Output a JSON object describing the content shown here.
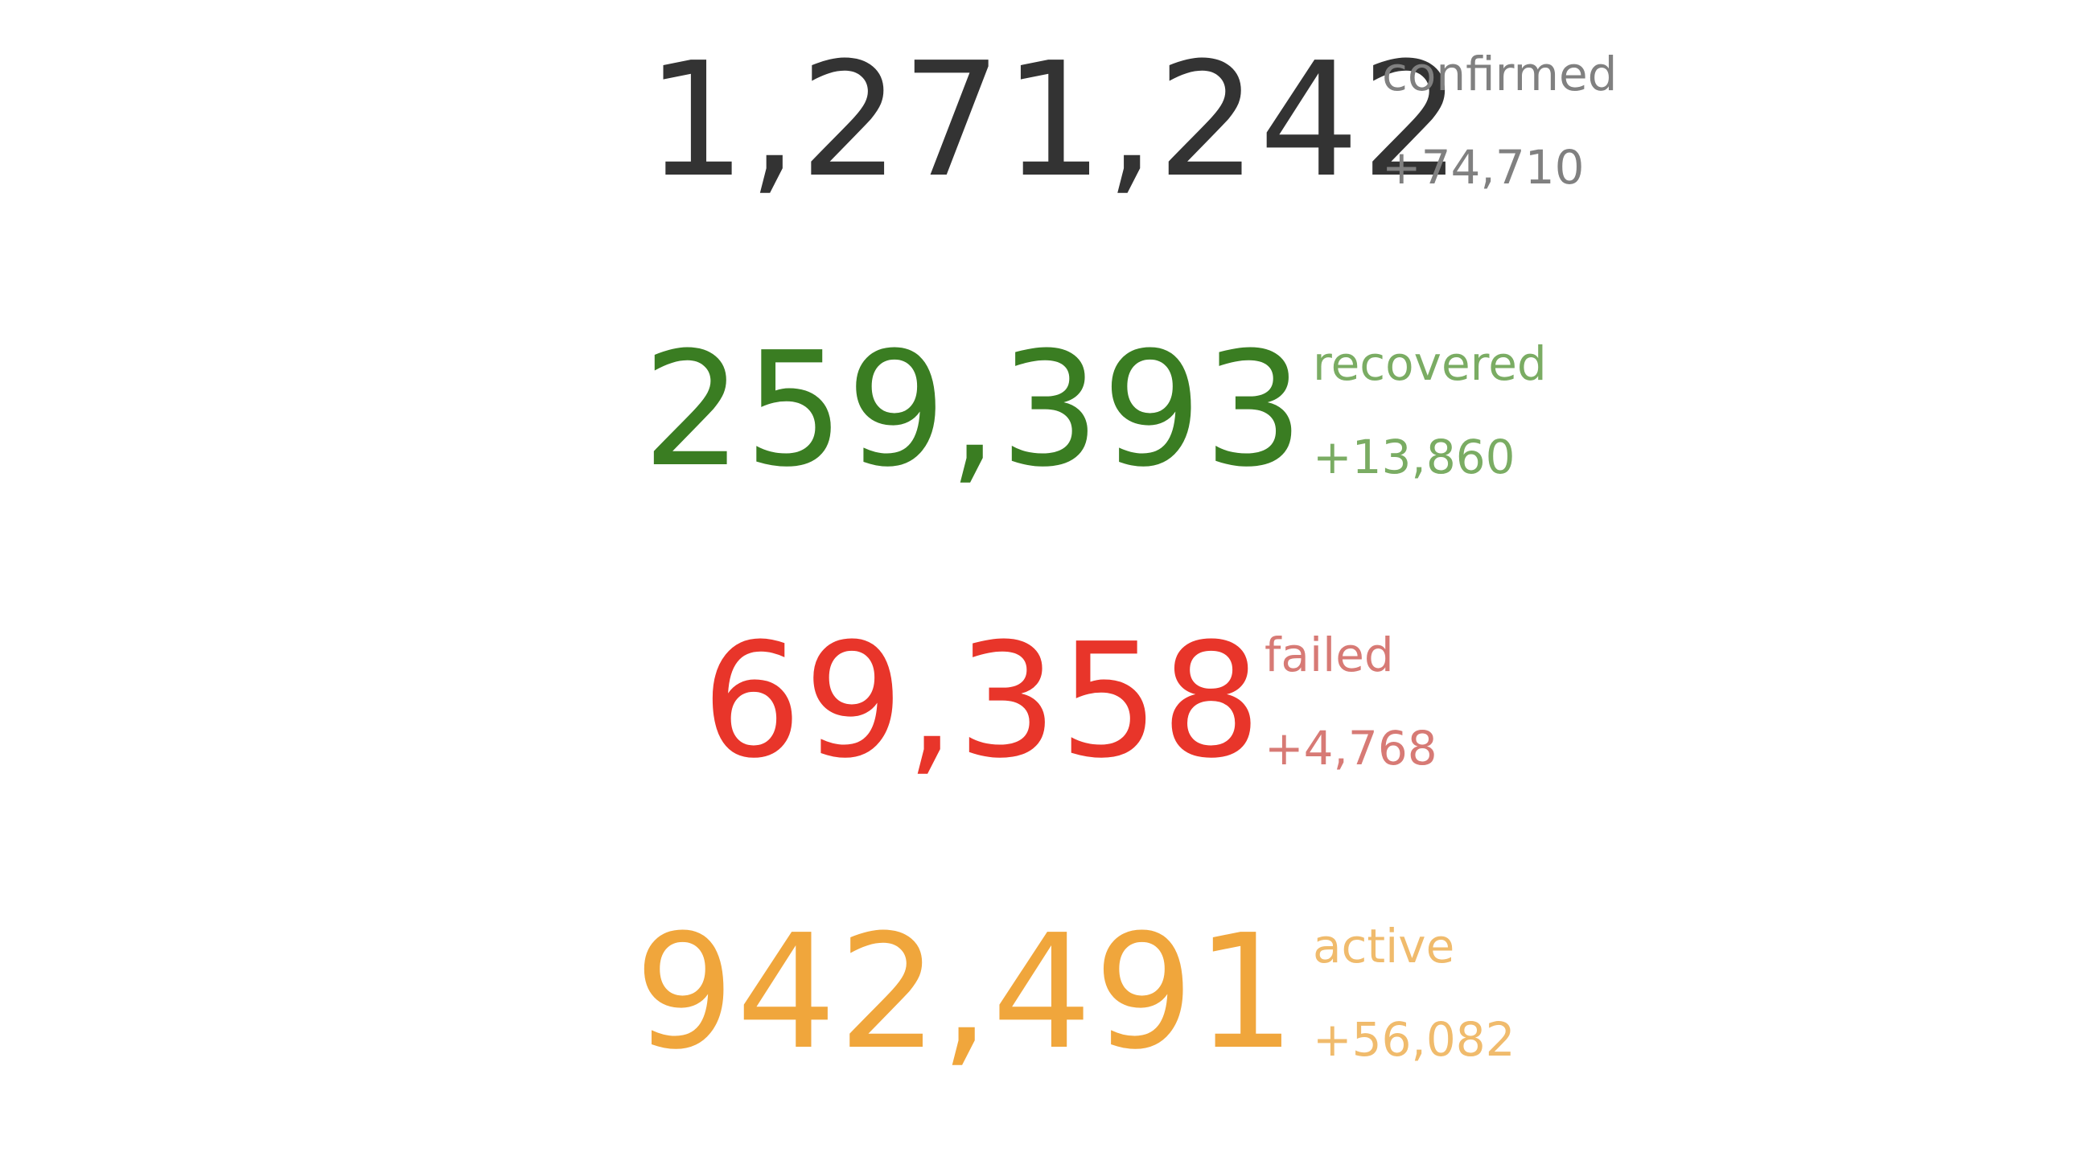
{
  "stats": {
    "confirmed": {
      "value": "1,271,242",
      "label": "confirmed",
      "delta": "+74,710",
      "color": "#333333",
      "sub_color": "#808080"
    },
    "recovered": {
      "value": "259,393",
      "label": "recovered",
      "delta": "+13,860",
      "color": "#3a7d22",
      "sub_color": "#7aac63"
    },
    "failed": {
      "value": "69,358",
      "label": "failed",
      "delta": "+4,768",
      "color": "#e8352a",
      "sub_color": "#d77a75"
    },
    "active": {
      "value": "942,491",
      "label": "active",
      "delta": "+56,082",
      "color": "#f0a63c",
      "sub_color": "#f0bb6c"
    }
  }
}
